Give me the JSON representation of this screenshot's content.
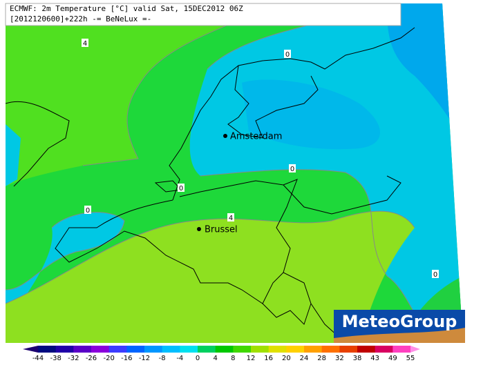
{
  "header": {
    "line1": "ECMWF: 2m Temperature [°C] valid Sat, 15DEC2012 06Z",
    "line2": "[2012120600]+222h -= BeNeLux =-"
  },
  "contour_labels": [
    "4",
    "0",
    "0",
    "0",
    "0",
    "4",
    "0"
  ],
  "cities": [
    "Amsterdam",
    "Brussel"
  ],
  "logo": "MeteoGroup",
  "colorbar": {
    "ticks": [
      -44,
      -38,
      -32,
      -26,
      -20,
      -16,
      -12,
      -8,
      -4,
      0,
      4,
      8,
      12,
      16,
      20,
      24,
      28,
      32,
      38,
      43,
      49,
      55
    ],
    "colors": [
      "#1c0070",
      "#000a80",
      "#2000a8",
      "#5a00c8",
      "#8a00dc",
      "#3c3cff",
      "#0064ff",
      "#0096ff",
      "#00beff",
      "#00e0f0",
      "#00d060",
      "#00c800",
      "#40d800",
      "#a0e000",
      "#e0e000",
      "#ffd000",
      "#ffa000",
      "#ff7000",
      "#e84000",
      "#c00000",
      "#d80060",
      "#ff40c0",
      "#ff90e8"
    ]
  }
}
